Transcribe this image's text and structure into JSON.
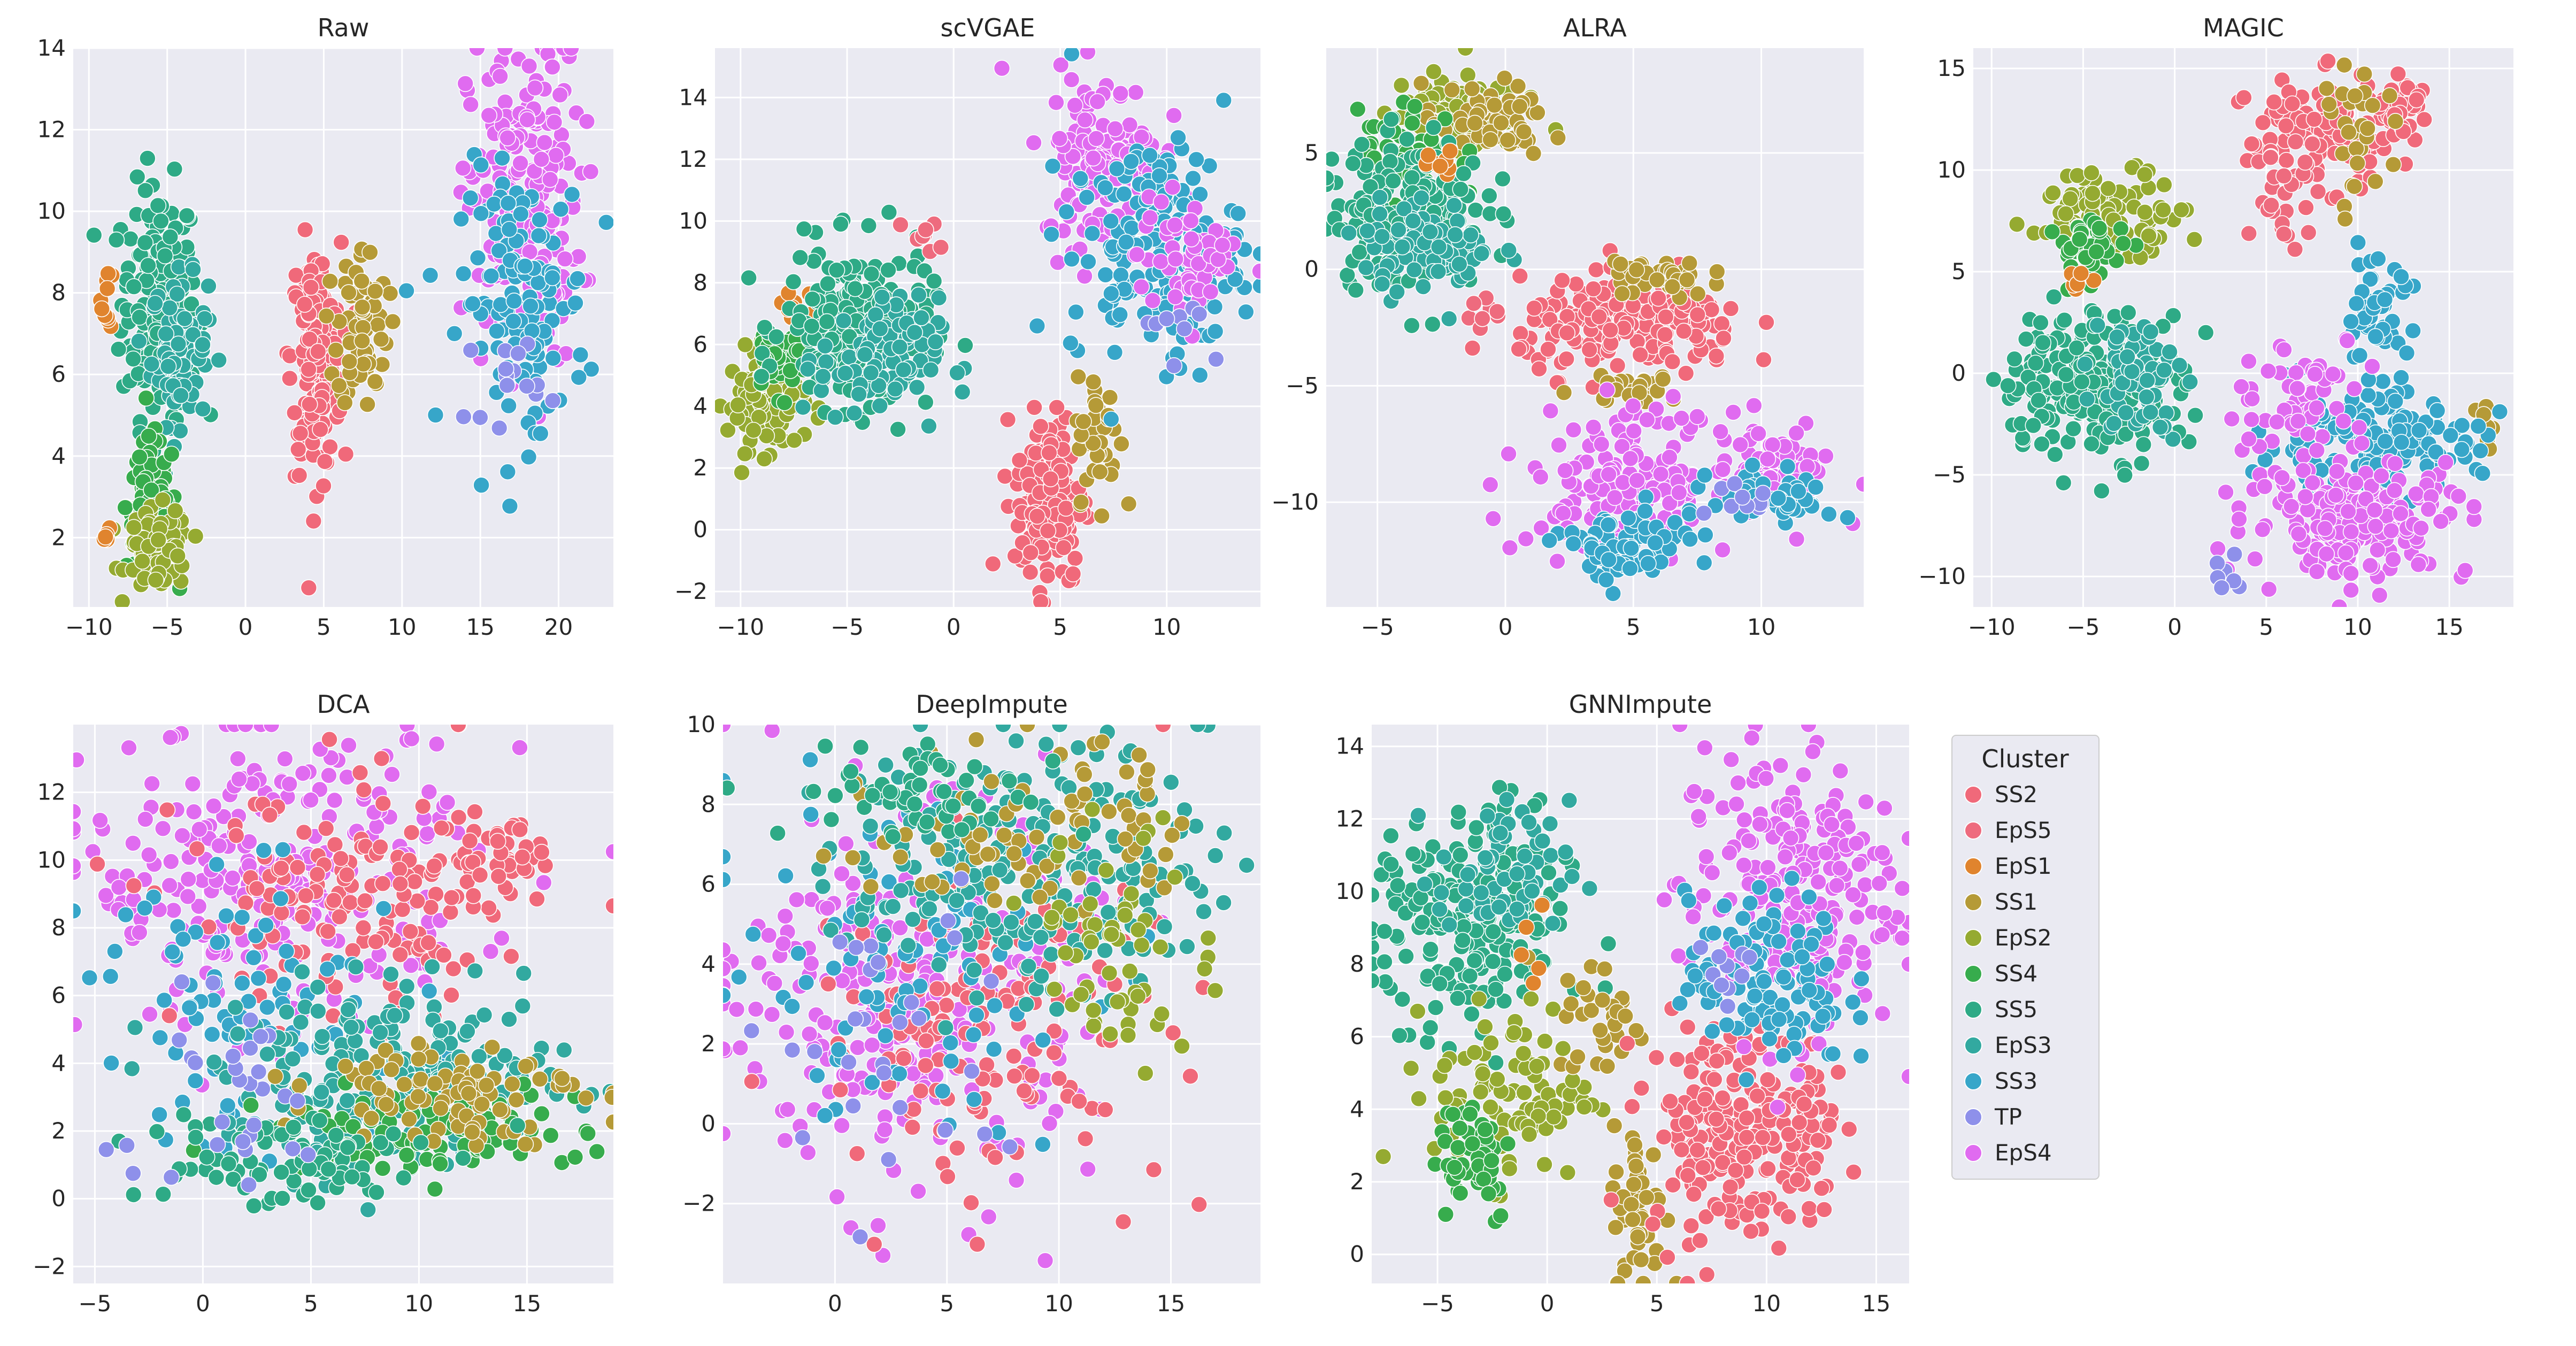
{
  "colors": {
    "SS2": "#F0697A",
    "EpS5": "#EE6B7E",
    "EpS1": "#E0842E",
    "SS1": "#B59A37",
    "EpS2": "#95AA31",
    "SS4": "#37AC4D",
    "SS5": "#2EAA86",
    "EpS3": "#32A9A0",
    "SS3": "#37A6C9",
    "TP": "#8E90EA",
    "EpS4": "#E06BF0"
  },
  "chart_data": [
    {
      "type": "scatter",
      "title": "Raw",
      "xlim": [
        -11,
        23.5
      ],
      "ylim": [
        0.3,
        14
      ],
      "xticks": [
        -10,
        -5,
        0,
        5,
        10,
        15,
        20
      ],
      "yticks": [
        2,
        4,
        6,
        8,
        10,
        12,
        14
      ],
      "clusters": [
        {
          "name": "SS5",
          "cx": -5.5,
          "cy": 7.8,
          "sx": 1.2,
          "sy": 1.4,
          "n": 200
        },
        {
          "name": "EpS3",
          "cx": -4.2,
          "cy": 6.6,
          "sx": 0.9,
          "sy": 0.9,
          "n": 90
        },
        {
          "name": "SS4",
          "cx": -6.0,
          "cy": 2.8,
          "sx": 0.8,
          "sy": 0.8,
          "n": 100
        },
        {
          "name": "EpS2",
          "cx": -5.6,
          "cy": 1.7,
          "sx": 1.0,
          "sy": 0.5,
          "n": 90
        },
        {
          "name": "EpS1",
          "cx": -8.8,
          "cy": 7.9,
          "sx": 0.2,
          "sy": 0.4,
          "n": 10
        },
        {
          "name": "EpS1",
          "cx": -8.8,
          "cy": 2.0,
          "sx": 0.2,
          "sy": 0.1,
          "n": 5
        },
        {
          "name": "SS2",
          "cx": 4.5,
          "cy": 6.4,
          "sx": 0.8,
          "sy": 1.4,
          "n": 170
        },
        {
          "name": "SS1",
          "cx": 7.5,
          "cy": 7.2,
          "sx": 0.8,
          "sy": 1.0,
          "n": 70
        },
        {
          "name": "EpS4",
          "cx": 17.8,
          "cy": 10.2,
          "sx": 1.8,
          "sy": 2.0,
          "n": 220
        },
        {
          "name": "SS3",
          "cx": 17.8,
          "cy": 7.8,
          "sx": 2.0,
          "sy": 1.6,
          "n": 130
        },
        {
          "name": "TP",
          "cx": 16.5,
          "cy": 6.0,
          "sx": 1.2,
          "sy": 0.6,
          "n": 15
        }
      ]
    },
    {
      "type": "scatter",
      "title": "scVGAE",
      "xlim": [
        -11.2,
        14.4
      ],
      "ylim": [
        -2.5,
        15.6
      ],
      "xticks": [
        -10,
        -5,
        0,
        5,
        10
      ],
      "yticks": [
        -2,
        0,
        2,
        4,
        6,
        8,
        10,
        12,
        14
      ],
      "clusters": [
        {
          "name": "EpS2",
          "cx": -8.8,
          "cy": 4.2,
          "sx": 0.9,
          "sy": 0.8,
          "n": 110
        },
        {
          "name": "SS4",
          "cx": -8.2,
          "cy": 5.6,
          "sx": 0.7,
          "sy": 0.6,
          "n": 40
        },
        {
          "name": "EpS1",
          "cx": -7.5,
          "cy": 7.3,
          "sx": 0.5,
          "sy": 0.3,
          "n": 8
        },
        {
          "name": "SS5",
          "cx": -4.5,
          "cy": 6.5,
          "sx": 1.7,
          "sy": 1.3,
          "n": 220
        },
        {
          "name": "EpS3",
          "cx": -3.5,
          "cy": 5.5,
          "sx": 1.4,
          "sy": 1.0,
          "n": 90
        },
        {
          "name": "EpS5",
          "cx": -1.2,
          "cy": 9.4,
          "sx": 0.5,
          "sy": 0.3,
          "n": 8
        },
        {
          "name": "SS2",
          "cx": 4.5,
          "cy": 1.0,
          "sx": 0.8,
          "sy": 1.4,
          "n": 170
        },
        {
          "name": "SS1",
          "cx": 6.8,
          "cy": 3.0,
          "sx": 0.5,
          "sy": 1.0,
          "n": 50
        },
        {
          "name": "EpS4",
          "cx": 7.0,
          "cy": 12.0,
          "sx": 1.4,
          "sy": 1.4,
          "n": 150
        },
        {
          "name": "SS3",
          "cx": 9.5,
          "cy": 9.0,
          "sx": 2.0,
          "sy": 1.8,
          "n": 170
        },
        {
          "name": "EpS4",
          "cx": 11.0,
          "cy": 8.8,
          "sx": 1.2,
          "sy": 1.0,
          "n": 60
        },
        {
          "name": "TP",
          "cx": 10.5,
          "cy": 6.8,
          "sx": 0.8,
          "sy": 0.5,
          "n": 10
        }
      ]
    },
    {
      "type": "scatter",
      "title": "ALRA",
      "xlim": [
        -7,
        14
      ],
      "ylim": [
        -14.5,
        9.5
      ],
      "xticks": [
        -5,
        0,
        5,
        10
      ],
      "yticks": [
        -10,
        -5,
        0,
        5
      ],
      "clusters": [
        {
          "name": "EpS2",
          "cx": -2.0,
          "cy": 6.8,
          "sx": 1.2,
          "sy": 0.8,
          "n": 100
        },
        {
          "name": "SS1",
          "cx": -0.8,
          "cy": 6.3,
          "sx": 1.2,
          "sy": 0.8,
          "n": 60
        },
        {
          "name": "SS4",
          "cx": -3.8,
          "cy": 5.0,
          "sx": 1.0,
          "sy": 1.0,
          "n": 60
        },
        {
          "name": "SS5",
          "cx": -3.8,
          "cy": 2.5,
          "sx": 1.5,
          "sy": 1.6,
          "n": 200
        },
        {
          "name": "EpS3",
          "cx": -3.0,
          "cy": 1.0,
          "sx": 1.3,
          "sy": 1.0,
          "n": 90
        },
        {
          "name": "EpS1",
          "cx": -2.5,
          "cy": 4.5,
          "sx": 0.4,
          "sy": 0.3,
          "n": 8
        },
        {
          "name": "EpS5",
          "cx": -1.0,
          "cy": -2.0,
          "sx": 0.4,
          "sy": 0.4,
          "n": 8
        },
        {
          "name": "SS2",
          "cx": 5.0,
          "cy": -2.5,
          "sx": 2.2,
          "sy": 1.0,
          "n": 200
        },
        {
          "name": "SS1",
          "cx": 6.0,
          "cy": -0.3,
          "sx": 1.0,
          "sy": 0.5,
          "n": 40
        },
        {
          "name": "SS1",
          "cx": 4.8,
          "cy": -5.2,
          "sx": 1.0,
          "sy": 0.3,
          "n": 30
        },
        {
          "name": "EpS4",
          "cx": 5.0,
          "cy": -9.0,
          "sx": 2.0,
          "sy": 1.5,
          "n": 170
        },
        {
          "name": "SS3",
          "cx": 4.5,
          "cy": -12.0,
          "sx": 1.2,
          "sy": 0.8,
          "n": 80
        },
        {
          "name": "EpS4",
          "cx": 10.5,
          "cy": -8.5,
          "sx": 1.2,
          "sy": 0.8,
          "n": 70
        },
        {
          "name": "SS3",
          "cx": 10.5,
          "cy": -9.8,
          "sx": 1.2,
          "sy": 0.6,
          "n": 60
        },
        {
          "name": "TP",
          "cx": 9.0,
          "cy": -10.0,
          "sx": 0.8,
          "sy": 0.6,
          "n": 10
        }
      ]
    },
    {
      "type": "scatter",
      "title": "MAGIC",
      "xlim": [
        -11,
        18.5
      ],
      "ylim": [
        -11.5,
        16
      ],
      "xticks": [
        -10,
        -5,
        0,
        5,
        10,
        15
      ],
      "yticks": [
        -10,
        -5,
        0,
        5,
        10,
        15
      ],
      "clusters": [
        {
          "name": "SS2",
          "cx": 8.0,
          "cy": 11.8,
          "sx": 2.0,
          "sy": 1.3,
          "n": 120
        },
        {
          "name": "EpS5",
          "cx": 6.0,
          "cy": 9.0,
          "sx": 1.0,
          "sy": 1.2,
          "n": 30
        },
        {
          "name": "SS2",
          "cx": 12.5,
          "cy": 13.0,
          "sx": 0.6,
          "sy": 0.7,
          "n": 30
        },
        {
          "name": "SS1",
          "cx": 10.0,
          "cy": 11.5,
          "sx": 0.8,
          "sy": 1.8,
          "n": 30
        },
        {
          "name": "EpS2",
          "cx": -3.5,
          "cy": 8.0,
          "sx": 2.0,
          "sy": 1.0,
          "n": 100
        },
        {
          "name": "SS4",
          "cx": -4.5,
          "cy": 6.0,
          "sx": 1.0,
          "sy": 0.8,
          "n": 40
        },
        {
          "name": "EpS1",
          "cx": -5.0,
          "cy": 4.5,
          "sx": 0.4,
          "sy": 0.3,
          "n": 6
        },
        {
          "name": "SS5",
          "cx": -4.5,
          "cy": -0.5,
          "sx": 2.5,
          "sy": 1.8,
          "n": 200
        },
        {
          "name": "EpS3",
          "cx": -2.0,
          "cy": 0.0,
          "sx": 1.2,
          "sy": 1.5,
          "n": 60
        },
        {
          "name": "SS1",
          "cx": 16.8,
          "cy": -2.2,
          "sx": 0.4,
          "sy": 0.7,
          "n": 8
        },
        {
          "name": "SS3",
          "cx": 10.5,
          "cy": -3.5,
          "sx": 3.0,
          "sy": 1.2,
          "n": 160
        },
        {
          "name": "SS3",
          "cx": 11.0,
          "cy": 2.5,
          "sx": 1.0,
          "sy": 1.5,
          "n": 50
        },
        {
          "name": "EpS4",
          "cx": 10.0,
          "cy": -7.0,
          "sx": 3.0,
          "sy": 1.5,
          "n": 200
        },
        {
          "name": "EpS4",
          "cx": 7.0,
          "cy": -1.0,
          "sx": 1.8,
          "sy": 1.5,
          "n": 60
        },
        {
          "name": "TP",
          "cx": 3.0,
          "cy": -10.0,
          "sx": 0.8,
          "sy": 0.4,
          "n": 8
        }
      ]
    },
    {
      "type": "scatter",
      "title": "DCA",
      "xlim": [
        -6,
        19
      ],
      "ylim": [
        -2.5,
        14
      ],
      "xticks": [
        -5,
        0,
        5,
        10,
        15
      ],
      "yticks": [
        -2,
        0,
        2,
        4,
        6,
        8,
        10,
        12
      ],
      "clusters": [
        {
          "name": "EpS4",
          "cx": 3.5,
          "cy": 9.5,
          "sx": 4.5,
          "sy": 2.2,
          "n": 280
        },
        {
          "name": "SS2",
          "cx": 7.0,
          "cy": 8.5,
          "sx": 4.0,
          "sy": 1.8,
          "n": 150
        },
        {
          "name": "SS2",
          "cx": 13.5,
          "cy": 10.0,
          "sx": 1.2,
          "sy": 0.6,
          "n": 40
        },
        {
          "name": "SS3",
          "cx": 2.5,
          "cy": 5.5,
          "sx": 4.0,
          "sy": 2.0,
          "n": 90
        },
        {
          "name": "EpS3",
          "cx": 9.0,
          "cy": 3.5,
          "sx": 4.0,
          "sy": 1.3,
          "n": 230
        },
        {
          "name": "SS4",
          "cx": 10.5,
          "cy": 2.0,
          "sx": 3.5,
          "sy": 0.6,
          "n": 100
        },
        {
          "name": "SS1",
          "cx": 11.5,
          "cy": 3.2,
          "sx": 3.0,
          "sy": 0.8,
          "n": 90
        },
        {
          "name": "SS5",
          "cx": 3.0,
          "cy": 1.2,
          "sx": 3.5,
          "sy": 0.8,
          "n": 80
        },
        {
          "name": "TP",
          "cx": 1.0,
          "cy": 3.0,
          "sx": 3.0,
          "sy": 1.5,
          "n": 30
        }
      ]
    },
    {
      "type": "scatter",
      "title": "DeepImpute",
      "xlim": [
        -5,
        19
      ],
      "ylim": [
        -4,
        10
      ],
      "xticks": [
        0,
        5,
        10,
        15
      ],
      "yticks": [
        -2,
        0,
        2,
        4,
        6,
        8,
        10
      ],
      "clusters": [
        {
          "name": "EpS4",
          "cx": 3.5,
          "cy": 3.0,
          "sx": 4.0,
          "sy": 2.3,
          "n": 280
        },
        {
          "name": "SS2",
          "cx": 7.0,
          "cy": 2.5,
          "sx": 4.0,
          "sy": 2.0,
          "n": 150
        },
        {
          "name": "SS3",
          "cx": 3.0,
          "cy": 4.0,
          "sx": 4.0,
          "sy": 2.0,
          "n": 100
        },
        {
          "name": "EpS3",
          "cx": 8.5,
          "cy": 6.5,
          "sx": 4.0,
          "sy": 1.6,
          "n": 230
        },
        {
          "name": "SS1",
          "cx": 9.0,
          "cy": 7.5,
          "sx": 3.5,
          "sy": 1.2,
          "n": 80
        },
        {
          "name": "EpS2",
          "cx": 13.0,
          "cy": 4.5,
          "sx": 2.0,
          "sy": 1.5,
          "n": 60
        },
        {
          "name": "SS5",
          "cx": 4.0,
          "cy": 8.3,
          "sx": 3.0,
          "sy": 0.6,
          "n": 60
        },
        {
          "name": "TP",
          "cx": 2.0,
          "cy": 2.0,
          "sx": 3.0,
          "sy": 2.0,
          "n": 30
        }
      ]
    },
    {
      "type": "scatter",
      "title": "GNNImpute",
      "xlim": [
        -8,
        16.5
      ],
      "ylim": [
        -0.8,
        14.6
      ],
      "xticks": [
        -5,
        0,
        5,
        10,
        15
      ],
      "yticks": [
        0,
        2,
        4,
        6,
        8,
        10,
        12,
        14
      ],
      "clusters": [
        {
          "name": "SS5",
          "cx": -3.5,
          "cy": 9.0,
          "sx": 2.2,
          "sy": 1.6,
          "n": 220
        },
        {
          "name": "EpS3",
          "cx": -2.0,
          "cy": 10.5,
          "sx": 1.5,
          "sy": 1.0,
          "n": 60
        },
        {
          "name": "EpS2",
          "cx": -1.5,
          "cy": 4.5,
          "sx": 1.8,
          "sy": 1.2,
          "n": 90
        },
        {
          "name": "SS4",
          "cx": -3.5,
          "cy": 2.8,
          "sx": 1.0,
          "sy": 1.0,
          "n": 50
        },
        {
          "name": "SS1",
          "cx": 4.2,
          "cy": 1.2,
          "sx": 0.6,
          "sy": 1.2,
          "n": 50
        },
        {
          "name": "SS1",
          "cx": 2.5,
          "cy": 6.5,
          "sx": 1.0,
          "sy": 0.8,
          "n": 30
        },
        {
          "name": "SS2",
          "cx": 8.5,
          "cy": 3.5,
          "sx": 2.0,
          "sy": 1.5,
          "n": 200
        },
        {
          "name": "SS2",
          "cx": 12.0,
          "cy": 3.5,
          "sx": 0.5,
          "sy": 1.5,
          "n": 30
        },
        {
          "name": "EpS4",
          "cx": 11.0,
          "cy": 10.0,
          "sx": 2.5,
          "sy": 2.0,
          "n": 240
        },
        {
          "name": "SS3",
          "cx": 10.0,
          "cy": 7.5,
          "sx": 1.8,
          "sy": 1.2,
          "n": 120
        },
        {
          "name": "TP",
          "cx": 8.5,
          "cy": 8.0,
          "sx": 0.8,
          "sy": 0.6,
          "n": 10
        },
        {
          "name": "EpS1",
          "cx": -0.5,
          "cy": 8.5,
          "sx": 0.4,
          "sy": 0.5,
          "n": 5
        }
      ]
    }
  ],
  "legend": {
    "title": "Cluster",
    "entries": [
      "SS2",
      "EpS5",
      "EpS1",
      "SS1",
      "EpS2",
      "SS4",
      "SS5",
      "EpS3",
      "SS3",
      "TP",
      "EpS4"
    ]
  }
}
